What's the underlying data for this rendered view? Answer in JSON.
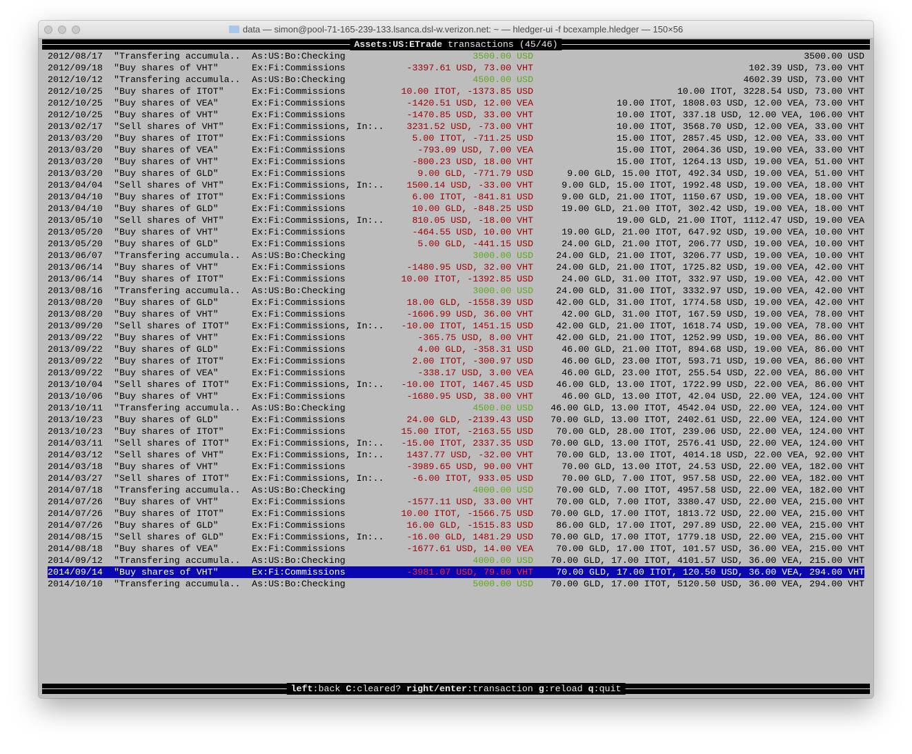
{
  "window": {
    "title": "data — simon@pool-71-165-239-133.lsanca.dsl-w.verizon.net: ~ — hledger-ui -f bcexample.hledger — 150×56"
  },
  "header": {
    "account": "Assets:US:ETrade",
    "suffix": " transactions (45/46)"
  },
  "colors": {
    "positive": "#5fa81c",
    "negative": "#a00000",
    "selection_bg": "#0a06b0"
  },
  "selected_index": 44,
  "rows": [
    [
      "2012/08/17",
      "\"Transfering accumula..",
      "As:US:Bo:Checking",
      "3500.00 USD",
      "3500.00 USD",
      "in"
    ],
    [
      "2012/09/18",
      "\"Buy shares of VHT\"",
      "Ex:Fi:Commissions",
      "-3397.61 USD, 73.00 VHT",
      "102.39 USD, 73.00 VHT",
      "out"
    ],
    [
      "2012/10/12",
      "\"Transfering accumula..",
      "As:US:Bo:Checking",
      "4500.00 USD",
      "4602.39 USD, 73.00 VHT",
      "in"
    ],
    [
      "2012/10/25",
      "\"Buy shares of ITOT\"",
      "Ex:Fi:Commissions",
      "10.00 ITOT, -1373.85 USD",
      "10.00 ITOT, 3228.54 USD, 73.00 VHT",
      "out"
    ],
    [
      "2012/10/25",
      "\"Buy shares of VEA\"",
      "Ex:Fi:Commissions",
      "-1420.51 USD, 12.00 VEA",
      "10.00 ITOT, 1808.03 USD, 12.00 VEA, 73.00 VHT",
      "out"
    ],
    [
      "2012/10/25",
      "\"Buy shares of VHT\"",
      "Ex:Fi:Commissions",
      "-1470.85 USD, 33.00 VHT",
      "10.00 ITOT, 337.18 USD, 12.00 VEA, 106.00 VHT",
      "out"
    ],
    [
      "2013/02/17",
      "\"Sell shares of VHT\"",
      "Ex:Fi:Commissions, In:..",
      "3231.52 USD, -73.00 VHT",
      "10.00 ITOT, 3568.70 USD, 12.00 VEA, 33.00 VHT",
      "out"
    ],
    [
      "2013/03/20",
      "\"Buy shares of ITOT\"",
      "Ex:Fi:Commissions",
      "5.00 ITOT, -711.25 USD",
      "15.00 ITOT, 2857.45 USD, 12.00 VEA, 33.00 VHT",
      "out"
    ],
    [
      "2013/03/20",
      "\"Buy shares of VEA\"",
      "Ex:Fi:Commissions",
      "-793.09 USD, 7.00 VEA",
      "15.00 ITOT, 2064.36 USD, 19.00 VEA, 33.00 VHT",
      "out"
    ],
    [
      "2013/03/20",
      "\"Buy shares of VHT\"",
      "Ex:Fi:Commissions",
      "-800.23 USD, 18.00 VHT",
      "15.00 ITOT, 1264.13 USD, 19.00 VEA, 51.00 VHT",
      "out"
    ],
    [
      "2013/03/20",
      "\"Buy shares of GLD\"",
      "Ex:Fi:Commissions",
      "9.00 GLD, -771.79 USD",
      "9.00 GLD, 15.00 ITOT, 492.34 USD, 19.00 VEA, 51.00 VHT",
      "out"
    ],
    [
      "2013/04/04",
      "\"Sell shares of VHT\"",
      "Ex:Fi:Commissions, In:..",
      "1500.14 USD, -33.00 VHT",
      "9.00 GLD, 15.00 ITOT, 1992.48 USD, 19.00 VEA, 18.00 VHT",
      "out"
    ],
    [
      "2013/04/10",
      "\"Buy shares of ITOT\"",
      "Ex:Fi:Commissions",
      "6.00 ITOT, -841.81 USD",
      "9.00 GLD, 21.00 ITOT, 1150.67 USD, 19.00 VEA, 18.00 VHT",
      "out"
    ],
    [
      "2013/04/10",
      "\"Buy shares of GLD\"",
      "Ex:Fi:Commissions",
      "10.00 GLD, -848.25 USD",
      "19.00 GLD, 21.00 ITOT, 302.42 USD, 19.00 VEA, 18.00 VHT",
      "out"
    ],
    [
      "2013/05/10",
      "\"Sell shares of VHT\"",
      "Ex:Fi:Commissions, In:..",
      "810.05 USD, -18.00 VHT",
      "19.00 GLD, 21.00 ITOT, 1112.47 USD, 19.00 VEA",
      "out"
    ],
    [
      "2013/05/20",
      "\"Buy shares of VHT\"",
      "Ex:Fi:Commissions",
      "-464.55 USD, 10.00 VHT",
      "19.00 GLD, 21.00 ITOT, 647.92 USD, 19.00 VEA, 10.00 VHT",
      "out"
    ],
    [
      "2013/05/20",
      "\"Buy shares of GLD\"",
      "Ex:Fi:Commissions",
      "5.00 GLD, -441.15 USD",
      "24.00 GLD, 21.00 ITOT, 206.77 USD, 19.00 VEA, 10.00 VHT",
      "out"
    ],
    [
      "2013/06/07",
      "\"Transfering accumula..",
      "As:US:Bo:Checking",
      "3000.00 USD",
      "24.00 GLD, 21.00 ITOT, 3206.77 USD, 19.00 VEA, 10.00 VHT",
      "in"
    ],
    [
      "2013/06/14",
      "\"Buy shares of VHT\"",
      "Ex:Fi:Commissions",
      "-1480.95 USD, 32.00 VHT",
      "24.00 GLD, 21.00 ITOT, 1725.82 USD, 19.00 VEA, 42.00 VHT",
      "out"
    ],
    [
      "2013/06/14",
      "\"Buy shares of ITOT\"",
      "Ex:Fi:Commissions",
      "10.00 ITOT, -1392.85 USD",
      "24.00 GLD, 31.00 ITOT, 332.97 USD, 19.00 VEA, 42.00 VHT",
      "out"
    ],
    [
      "2013/08/16",
      "\"Transfering accumula..",
      "As:US:Bo:Checking",
      "3000.00 USD",
      "24.00 GLD, 31.00 ITOT, 3332.97 USD, 19.00 VEA, 42.00 VHT",
      "in"
    ],
    [
      "2013/08/20",
      "\"Buy shares of GLD\"",
      "Ex:Fi:Commissions",
      "18.00 GLD, -1558.39 USD",
      "42.00 GLD, 31.00 ITOT, 1774.58 USD, 19.00 VEA, 42.00 VHT",
      "out"
    ],
    [
      "2013/08/20",
      "\"Buy shares of VHT\"",
      "Ex:Fi:Commissions",
      "-1606.99 USD, 36.00 VHT",
      "42.00 GLD, 31.00 ITOT, 167.59 USD, 19.00 VEA, 78.00 VHT",
      "out"
    ],
    [
      "2013/09/20",
      "\"Sell shares of ITOT\"",
      "Ex:Fi:Commissions, In:..",
      "-10.00 ITOT, 1451.15 USD",
      "42.00 GLD, 21.00 ITOT, 1618.74 USD, 19.00 VEA, 78.00 VHT",
      "out"
    ],
    [
      "2013/09/22",
      "\"Buy shares of VHT\"",
      "Ex:Fi:Commissions",
      "-365.75 USD, 8.00 VHT",
      "42.00 GLD, 21.00 ITOT, 1252.99 USD, 19.00 VEA, 86.00 VHT",
      "out"
    ],
    [
      "2013/09/22",
      "\"Buy shares of GLD\"",
      "Ex:Fi:Commissions",
      "4.00 GLD, -358.31 USD",
      "46.00 GLD, 21.00 ITOT, 894.68 USD, 19.00 VEA, 86.00 VHT",
      "out"
    ],
    [
      "2013/09/22",
      "\"Buy shares of ITOT\"",
      "Ex:Fi:Commissions",
      "2.00 ITOT, -300.97 USD",
      "46.00 GLD, 23.00 ITOT, 593.71 USD, 19.00 VEA, 86.00 VHT",
      "out"
    ],
    [
      "2013/09/22",
      "\"Buy shares of VEA\"",
      "Ex:Fi:Commissions",
      "-338.17 USD, 3.00 VEA",
      "46.00 GLD, 23.00 ITOT, 255.54 USD, 22.00 VEA, 86.00 VHT",
      "out"
    ],
    [
      "2013/10/04",
      "\"Sell shares of ITOT\"",
      "Ex:Fi:Commissions, In:..",
      "-10.00 ITOT, 1467.45 USD",
      "46.00 GLD, 13.00 ITOT, 1722.99 USD, 22.00 VEA, 86.00 VHT",
      "out"
    ],
    [
      "2013/10/06",
      "\"Buy shares of VHT\"",
      "Ex:Fi:Commissions",
      "-1680.95 USD, 38.00 VHT",
      "46.00 GLD, 13.00 ITOT, 42.04 USD, 22.00 VEA, 124.00 VHT",
      "out"
    ],
    [
      "2013/10/11",
      "\"Transfering accumula..",
      "As:US:Bo:Checking",
      "4500.00 USD",
      "46.00 GLD, 13.00 ITOT, 4542.04 USD, 22.00 VEA, 124.00 VHT",
      "in"
    ],
    [
      "2013/10/23",
      "\"Buy shares of GLD\"",
      "Ex:Fi:Commissions",
      "24.00 GLD, -2139.43 USD",
      "70.00 GLD, 13.00 ITOT, 2402.61 USD, 22.00 VEA, 124.00 VHT",
      "out"
    ],
    [
      "2013/10/23",
      "\"Buy shares of ITOT\"",
      "Ex:Fi:Commissions",
      "15.00 ITOT, -2163.55 USD",
      "70.00 GLD, 28.00 ITOT, 239.06 USD, 22.00 VEA, 124.00 VHT",
      "out"
    ],
    [
      "2014/03/11",
      "\"Sell shares of ITOT\"",
      "Ex:Fi:Commissions, In:..",
      "-15.00 ITOT, 2337.35 USD",
      "70.00 GLD, 13.00 ITOT, 2576.41 USD, 22.00 VEA, 124.00 VHT",
      "out"
    ],
    [
      "2014/03/12",
      "\"Sell shares of VHT\"",
      "Ex:Fi:Commissions, In:..",
      "1437.77 USD, -32.00 VHT",
      "70.00 GLD, 13.00 ITOT, 4014.18 USD, 22.00 VEA, 92.00 VHT",
      "out"
    ],
    [
      "2014/03/18",
      "\"Buy shares of VHT\"",
      "Ex:Fi:Commissions",
      "-3989.65 USD, 90.00 VHT",
      "70.00 GLD, 13.00 ITOT, 24.53 USD, 22.00 VEA, 182.00 VHT",
      "out"
    ],
    [
      "2014/03/27",
      "\"Sell shares of ITOT\"",
      "Ex:Fi:Commissions, In:..",
      "-6.00 ITOT, 933.05 USD",
      "70.00 GLD, 7.00 ITOT, 957.58 USD, 22.00 VEA, 182.00 VHT",
      "out"
    ],
    [
      "2014/07/18",
      "\"Transfering accumula..",
      "As:US:Bo:Checking",
      "4000.00 USD",
      "70.00 GLD, 7.00 ITOT, 4957.58 USD, 22.00 VEA, 182.00 VHT",
      "in"
    ],
    [
      "2014/07/26",
      "\"Buy shares of VHT\"",
      "Ex:Fi:Commissions",
      "-1577.11 USD, 33.00 VHT",
      "70.00 GLD, 7.00 ITOT, 3380.47 USD, 22.00 VEA, 215.00 VHT",
      "out"
    ],
    [
      "2014/07/26",
      "\"Buy shares of ITOT\"",
      "Ex:Fi:Commissions",
      "10.00 ITOT, -1566.75 USD",
      "70.00 GLD, 17.00 ITOT, 1813.72 USD, 22.00 VEA, 215.00 VHT",
      "out"
    ],
    [
      "2014/07/26",
      "\"Buy shares of GLD\"",
      "Ex:Fi:Commissions",
      "16.00 GLD, -1515.83 USD",
      "86.00 GLD, 17.00 ITOT, 297.89 USD, 22.00 VEA, 215.00 VHT",
      "out"
    ],
    [
      "2014/08/15",
      "\"Sell shares of GLD\"",
      "Ex:Fi:Commissions, In:..",
      "-16.00 GLD, 1481.29 USD",
      "70.00 GLD, 17.00 ITOT, 1779.18 USD, 22.00 VEA, 215.00 VHT",
      "out"
    ],
    [
      "2014/08/18",
      "\"Buy shares of VEA\"",
      "Ex:Fi:Commissions",
      "-1677.61 USD, 14.00 VEA",
      "70.00 GLD, 17.00 ITOT, 101.57 USD, 36.00 VEA, 215.00 VHT",
      "out"
    ],
    [
      "2014/09/12",
      "\"Transfering accumula..",
      "As:US:Bo:Checking",
      "4000.00 USD",
      "70.00 GLD, 17.00 ITOT, 4101.57 USD, 36.00 VEA, 215.00 VHT",
      "in"
    ],
    [
      "2014/09/14",
      "\"Buy shares of VHT\"",
      "Ex:Fi:Commissions",
      "-3981.07 USD, 79.00 VHT",
      "70.00 GLD, 17.00 ITOT, 120.50 USD, 36.00 VEA, 294.00 VHT",
      "out"
    ],
    [
      "2014/10/10",
      "\"Transfering accumula..",
      "As:US:Bo:Checking",
      "5000.00 USD",
      "70.00 GLD, 17.00 ITOT, 5120.50 USD, 36.00 VEA, 294.00 VHT",
      "in"
    ]
  ],
  "footer": {
    "keys": [
      {
        "key": "left",
        "action": "back"
      },
      {
        "key": "C",
        "action": "cleared?"
      },
      {
        "key": "right/enter",
        "action": "transaction"
      },
      {
        "key": "g",
        "action": "reload"
      },
      {
        "key": "q",
        "action": "quit"
      }
    ]
  }
}
